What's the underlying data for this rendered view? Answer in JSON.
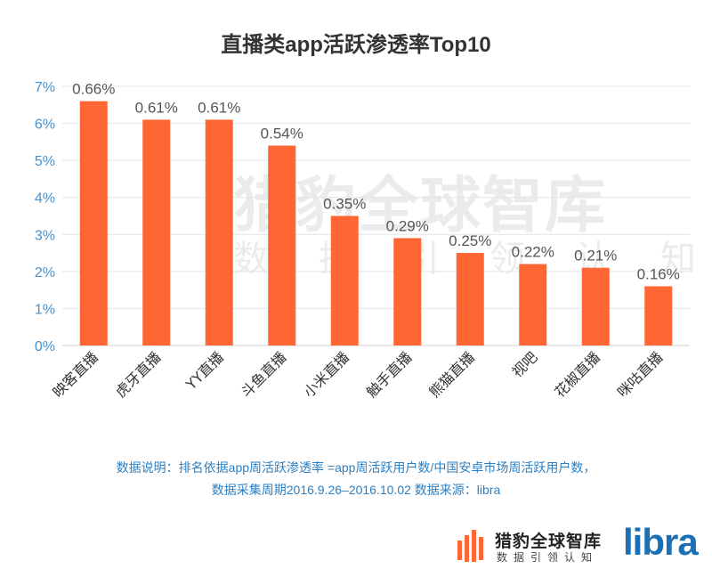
{
  "chart_data": {
    "type": "bar",
    "title": "直播类app活跃渗透率Top10",
    "categories": [
      "映客直播",
      "虎牙直播",
      "YY直播",
      "斗鱼直播",
      "小米直播",
      "触手直播",
      "熊猫直播",
      "视吧",
      "花椒直播",
      "咪咕直播"
    ],
    "values": [
      0.66,
      0.61,
      0.61,
      0.54,
      0.35,
      0.29,
      0.25,
      0.22,
      0.21,
      0.16
    ],
    "data_labels": [
      "0.66%",
      "0.61%",
      "0.61%",
      "0.54%",
      "0.35%",
      "0.29%",
      "0.25%",
      "0.22%",
      "0.21%",
      "0.16%"
    ],
    "yticks": [
      "0%",
      "1%",
      "2%",
      "3%",
      "4%",
      "5%",
      "6%",
      "7%"
    ],
    "ylim": [
      0,
      7
    ],
    "bar_color": "#ff6633",
    "grid": true,
    "legend": "none"
  },
  "note": {
    "line1": "数据说明：排名依据app周活跃渗透率 =app周活跃用户数/中国安卓市场周活跃用户数，",
    "line2": "数据采集周期2016.9.26–2016.10.02 数据来源：libra"
  },
  "brand": {
    "name": "猎豹全球智库",
    "tagline": "数据引领认知",
    "partner": "libra",
    "partner_color": "#1c6fb4"
  }
}
